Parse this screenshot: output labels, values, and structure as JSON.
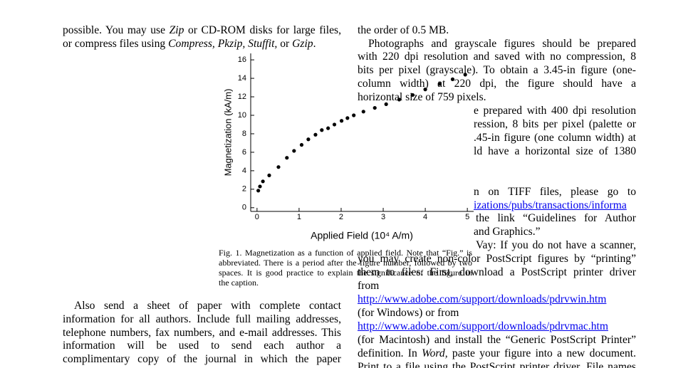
{
  "left_top_lines": [
    [
      "possible. You may use ",
      "Zip",
      " or CD-ROM disks for large files,"
    ],
    [
      "or compress files using ",
      "Compress, Pkzip, Stuffit,",
      " or ",
      "Gzip",
      "."
    ]
  ],
  "left_bottom_lines": [
    "Also send a sheet of paper with complete contact",
    "information for all authors. Include full mailing addresses,",
    "telephone numbers, fax numbers, and e-mail addresses. This",
    "information will be used to send each author a",
    "complimentary copy of the journal in which the paper"
  ],
  "right_lines": [
    "the order of 0.5 MB.",
    "Photographs and grayscale figures should be prepared",
    "with 220 dpi resolution and saved with no compression, 8",
    "bits per pixel (grayscale). To obtain a 3.45-in figure (one-",
    "column width) at 220 dpi, the figure should have a",
    "horizontal size of 759 pixels.",
    "e prepared with 400 dpi resolution",
    "ression, 8 bits per pixel (palette or",
    ".45-in figure (one column width) at",
    "ld have a horizontal size of 1380",
    "n on TIFF files, please go to",
    "the link “Guidelines for Author",
    "and Graphics.”",
    "Vay: If you do not have a scanner,",
    "you may create non-color PostScript figures by “printing”",
    "them to files. First, download a PostScript printer driver",
    "from",
    "(for Windows) or from",
    "(for Macintosh) and install the “Generic PostScript Printer”",
    [
      "definition. In ",
      "Word,",
      " paste your figure into a new document."
    ],
    "Print to a file using the PostScript printer driver. File names"
  ],
  "right_links": [
    "izations/pubs/transactions/informa",
    "http://www.adobe.com/support/downloads/pdrvwin.htm",
    "http://www.adobe.com/support/downloads/pdrvmac.htm"
  ],
  "figure_caption": [
    "Fig. 1. Magnetization as a function of applied field. Note that “Fig.” is",
    "abbreviated. There is a period after the figure number, followed by two",
    "spaces. It is good practice to explain the significance of the figure in",
    "the caption."
  ],
  "chart_data": {
    "type": "scatter",
    "x_label": "Applied Field (10⁴ A/m)",
    "y_label": "Magnetization (kA/m)",
    "color": "#000000",
    "x": [
      0.03,
      0.07,
      0.14,
      0.29,
      0.51,
      0.71,
      0.88,
      1.06,
      1.22,
      1.39,
      1.54,
      1.69,
      1.84,
      2.01,
      2.15,
      2.3,
      2.53,
      2.8,
      3.07,
      3.38,
      3.7,
      4.0,
      4.34,
      4.65,
      4.95
    ],
    "values": [
      1.85,
      2.3,
      2.85,
      3.5,
      4.4,
      5.4,
      6.15,
      6.8,
      7.4,
      7.9,
      8.4,
      8.6,
      9.0,
      9.4,
      9.7,
      10.0,
      10.4,
      10.8,
      11.2,
      11.7,
      12.2,
      12.8,
      13.4,
      13.9,
      14.4
    ],
    "xlim": [
      -0.15,
      5.15
    ],
    "ylim": [
      -0.4,
      16.7
    ],
    "xticks": [
      0,
      1,
      2,
      3,
      4,
      5
    ],
    "yticks": [
      0,
      2,
      4,
      6,
      8,
      10,
      12,
      14,
      16
    ]
  }
}
